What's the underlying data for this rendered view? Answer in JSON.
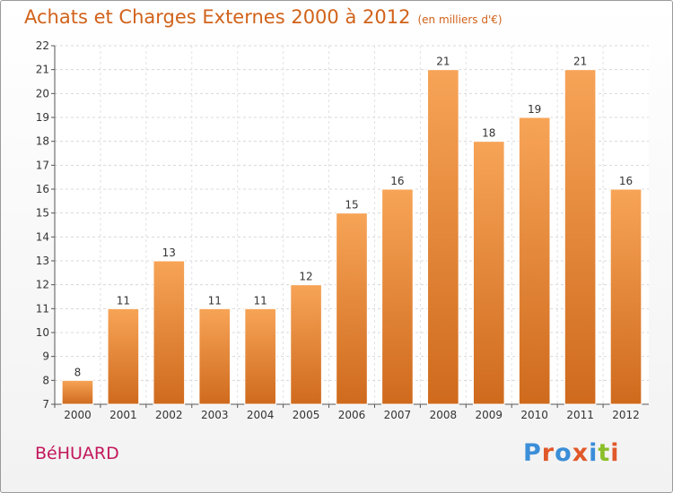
{
  "header": {
    "title": "Achats et Charges Externes 2000 à 2012",
    "unit": "(en milliers d'€)"
  },
  "footer": {
    "commune": "BéHUARD",
    "logo": [
      "P",
      "r",
      "o",
      "x",
      "i",
      "t",
      "i"
    ],
    "logo_colors": [
      "#3b8ed8",
      "#e0592a",
      "#3b8ed8",
      "#e0592a",
      "#3b8ed8",
      "#8bbf2a",
      "#e0592a"
    ]
  },
  "chart_data": {
    "type": "bar",
    "title": "Achats et Charges Externes 2000 à 2012",
    "subtitle": "(en milliers d'€)",
    "categories": [
      "2000",
      "2001",
      "2002",
      "2003",
      "2004",
      "2005",
      "2006",
      "2007",
      "2008",
      "2009",
      "2010",
      "2011",
      "2012"
    ],
    "values": [
      8,
      11,
      13,
      11,
      11,
      12,
      15,
      16,
      21,
      18,
      19,
      21,
      16
    ],
    "ylim": [
      7,
      22
    ],
    "yticks": [
      7,
      8,
      9,
      10,
      11,
      12,
      13,
      14,
      15,
      16,
      17,
      18,
      19,
      20,
      21,
      22
    ],
    "grid": true,
    "bar_color_top": "#f7a457",
    "bar_color_bottom": "#cf6a1d"
  }
}
